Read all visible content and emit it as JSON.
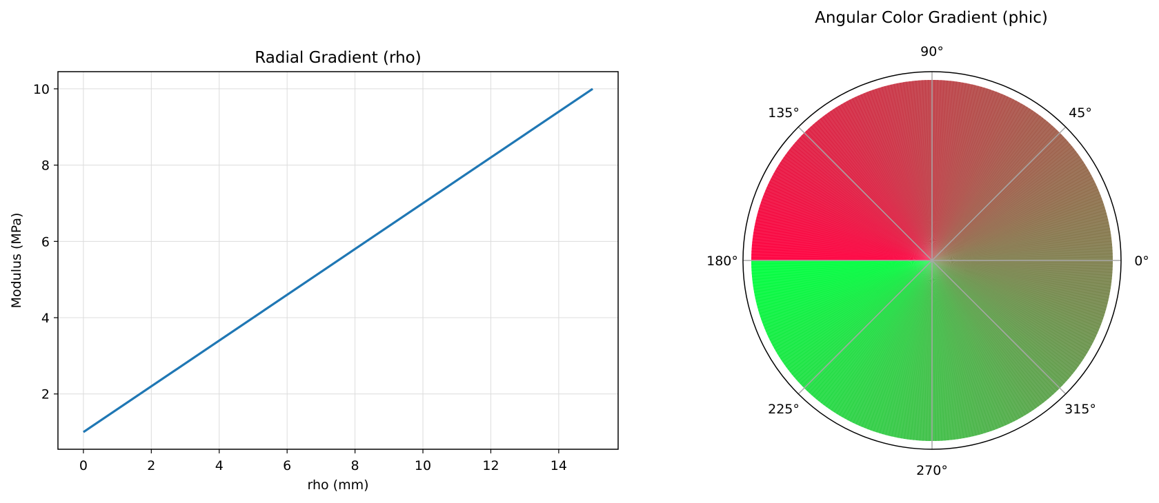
{
  "chart_data": [
    {
      "type": "line",
      "title": "Radial Gradient (rho)",
      "xlabel": "rho (mm)",
      "ylabel": "Modulus (MPa)",
      "xlim": [
        -0.75,
        15.75
      ],
      "ylim": [
        0.55,
        10.45
      ],
      "xticks": [
        0,
        2,
        4,
        6,
        8,
        10,
        12,
        14
      ],
      "yticks": [
        2,
        4,
        6,
        8,
        10
      ],
      "grid": true,
      "series": [
        {
          "color": "#1f77b4",
          "x": [
            0,
            15
          ],
          "y": [
            1,
            10
          ]
        }
      ]
    },
    {
      "type": "polar",
      "title": "Angular Color Gradient (phic)",
      "angle_ticks": [
        "0°",
        "45°",
        "90°",
        "135°",
        "180°",
        "225°",
        "270°",
        "315°"
      ],
      "angle_tick_degrees": [
        0,
        45,
        90,
        135,
        180,
        225,
        270,
        315
      ],
      "grid": true,
      "sectors": [
        {
          "theta_range_deg": [
            0,
            180
          ],
          "color_at_0deg": "#808050",
          "color_at_180deg": "#ff0040"
        },
        {
          "theta_range_deg": [
            180,
            360
          ],
          "color_at_180deg": "#00ff40",
          "color_at_360deg": "#808050"
        }
      ]
    }
  ]
}
